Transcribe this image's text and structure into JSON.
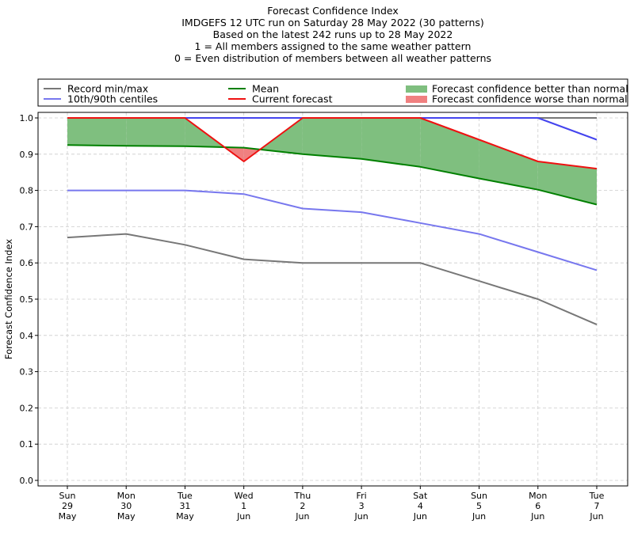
{
  "chart_data": {
    "type": "line",
    "title_lines": [
      "Forecast Confidence Index",
      "IMDGEFS 12 UTC run on Saturday 28 May 2022 (30 patterns)",
      "Based on the latest 242 runs up to 28 May 2022",
      "1 = All members assigned to the same weather pattern",
      "0 = Even distribution of members between all weather patterns"
    ],
    "ylabel": "Forecast Confidence Index",
    "xlabel": "",
    "ylim": [
      0.0,
      1.0
    ],
    "yticks": [
      "0.0",
      "0.1",
      "0.2",
      "0.3",
      "0.4",
      "0.5",
      "0.6",
      "0.7",
      "0.8",
      "0.9",
      "1.0"
    ],
    "grid": true,
    "legend_placement": "top",
    "categories": [
      [
        "Sun",
        "29",
        "May"
      ],
      [
        "Mon",
        "30",
        "May"
      ],
      [
        "Tue",
        "31",
        "May"
      ],
      [
        "Wed",
        "1",
        "Jun"
      ],
      [
        "Thu",
        "2",
        "Jun"
      ],
      [
        "Fri",
        "3",
        "Jun"
      ],
      [
        "Sat",
        "4",
        "Jun"
      ],
      [
        "Sun",
        "5",
        "Jun"
      ],
      [
        "Mon",
        "6",
        "Jun"
      ],
      [
        "Tue",
        "7",
        "Jun"
      ]
    ],
    "series": [
      {
        "name": "Record min/max",
        "color": "#777777",
        "key": "record_min",
        "values": [
          0.67,
          0.68,
          0.65,
          0.61,
          0.6,
          0.6,
          0.6,
          0.55,
          0.5,
          0.43
        ]
      },
      {
        "name": "Record min/max",
        "color": "#777777",
        "key": "record_max",
        "values": [
          1.0,
          1.0,
          1.0,
          1.0,
          1.0,
          1.0,
          1.0,
          1.0,
          1.0,
          1.0
        ]
      },
      {
        "name": "10th/90th centiles",
        "color": "#7777ee",
        "key": "p10",
        "values": [
          0.8,
          0.8,
          0.8,
          0.79,
          0.75,
          0.74,
          0.71,
          0.68,
          0.63,
          0.58
        ]
      },
      {
        "name": "10th/90th centiles",
        "color": "#4444ee",
        "key": "p90",
        "values": [
          1.0,
          1.0,
          1.0,
          1.0,
          1.0,
          1.0,
          1.0,
          1.0,
          1.0,
          0.94
        ]
      },
      {
        "name": "Mean",
        "color": "#008000",
        "key": "mean",
        "values": [
          0.925,
          0.923,
          0.922,
          0.918,
          0.9,
          0.887,
          0.865,
          0.833,
          0.802,
          0.761
        ]
      },
      {
        "name": "Current forecast",
        "color": "#ee1111",
        "key": "current",
        "values": [
          1.0,
          1.0,
          1.0,
          0.88,
          1.0,
          1.0,
          1.0,
          0.94,
          0.88,
          0.86
        ]
      }
    ],
    "legend": [
      {
        "label": "Record min/max",
        "kind": "line",
        "color": "#777777"
      },
      {
        "label": "10th/90th centiles",
        "kind": "line",
        "color": "#7777ee"
      },
      {
        "label": "Mean",
        "kind": "line",
        "color": "#008000"
      },
      {
        "label": "Current forecast",
        "kind": "line",
        "color": "#ee1111"
      },
      {
        "label": "Forecast confidence better than normal",
        "kind": "patch",
        "color": "#7fbf7f"
      },
      {
        "label": "Forecast confidence worse than normal",
        "kind": "patch",
        "color": "#f08080"
      }
    ],
    "fill_better_color": "#7fbf7f",
    "fill_worse_color": "#f08080"
  }
}
